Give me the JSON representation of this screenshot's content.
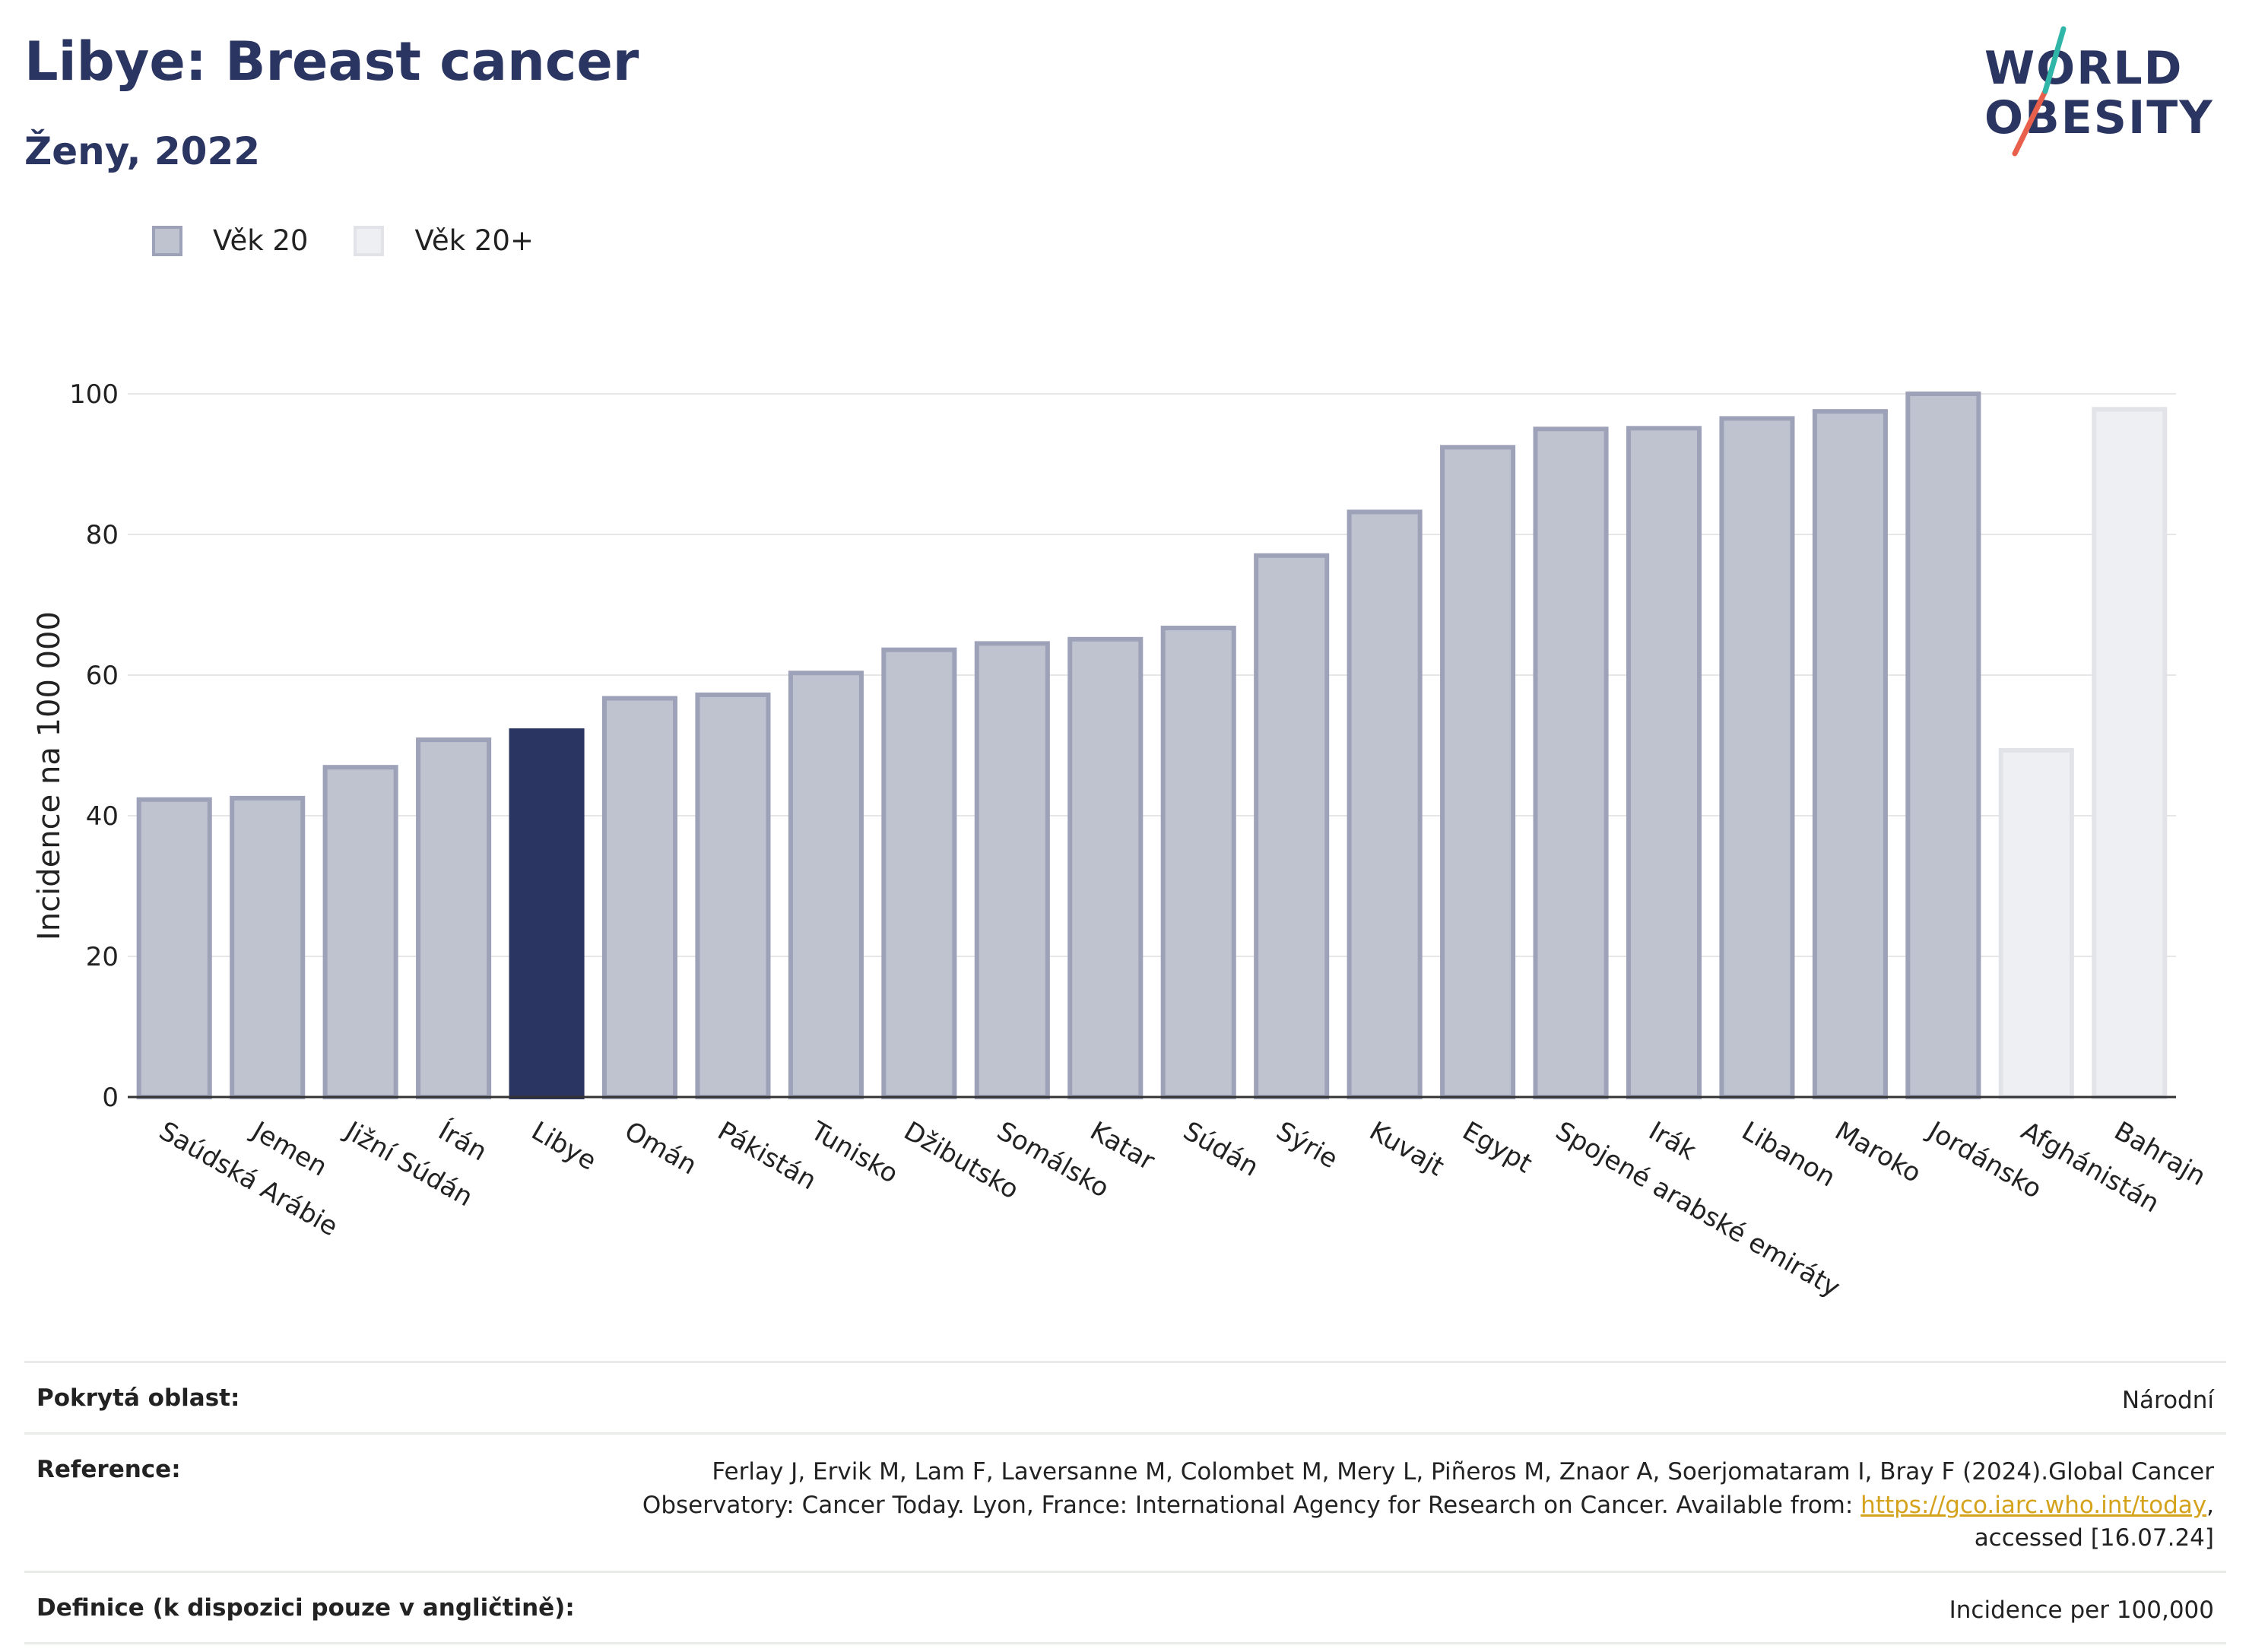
{
  "header": {
    "title": "Libye: Breast cancer",
    "subtitle": "Ženy, 2022"
  },
  "logo": {
    "line1": "WORLD",
    "line2": "OBESITY",
    "colors": {
      "text": "#2b3561",
      "slash_red": "#e8604c",
      "slash_teal": "#2fb6a8"
    }
  },
  "legend": [
    {
      "label": "Věk 20",
      "color": "#bfc2cf"
    },
    {
      "label": "Věk 20+",
      "color": "#eeeff3"
    }
  ],
  "chart_data": {
    "type": "bar",
    "ylabel": "Incidence na 100 000",
    "ylim": [
      0,
      100
    ],
    "yticks": [
      0,
      20,
      40,
      60,
      80,
      100
    ],
    "grid": true,
    "legend_position": "top-left",
    "categories": [
      "Saúdská Arábie",
      "Jemen",
      "Jižní Súdán",
      "Írán",
      "Libye",
      "Omán",
      "Pákistán",
      "Tunisko",
      "Džibutsko",
      "Somálsko",
      "Katar",
      "Súdán",
      "Sýrie",
      "Kuvajt",
      "Egypt",
      "Spojené arabské emiráty",
      "Irák",
      "Libanon",
      "Maroko",
      "Jordánsko",
      "Afghánistán",
      "Bahrajn"
    ],
    "values": [
      42.3,
      42.5,
      46.9,
      50.8,
      52.1,
      56.7,
      57.2,
      60.3,
      63.6,
      64.5,
      65.1,
      66.7,
      77.0,
      83.2,
      92.4,
      95.0,
      95.1,
      96.5,
      97.5,
      100.0,
      49.3,
      97.8
    ],
    "age_group": [
      "Věk 20",
      "Věk 20",
      "Věk 20",
      "Věk 20",
      "Věk 20",
      "Věk 20",
      "Věk 20",
      "Věk 20",
      "Věk 20",
      "Věk 20",
      "Věk 20",
      "Věk 20",
      "Věk 20",
      "Věk 20",
      "Věk 20",
      "Věk 20",
      "Věk 20",
      "Věk 20",
      "Věk 20",
      "Věk 20",
      "Věk 20+",
      "Věk 20+"
    ],
    "highlight": "Libye",
    "colors": {
      "age20_fill": "#bfc2cf",
      "age20_stroke": "#9ea2b8",
      "age20plus_fill": "#eeeff3",
      "age20plus_stroke": "#e2e3e9",
      "highlight_fill": "#2b3561"
    }
  },
  "info": {
    "rows": [
      {
        "label": "Pokrytá oblast:",
        "value": "Národní"
      },
      {
        "label": "Reference:",
        "value_line1": "Ferlay J, Ervik M, Lam F, Laversanne M, Colombet M, Mery L, Piñeros M, Znaor A, Soerjomataram I, Bray F (2024).Global Cancer",
        "value_line2_prefix": "Observatory: Cancer Today. Lyon, France: International Agency for Research on Cancer. Available from: ",
        "link": "https://gco.iarc.who.int/today",
        "value_line2_suffix": ",",
        "value_line3": "accessed [16.07.24]"
      },
      {
        "label": "Definice (k dispozici pouze v angličtině):",
        "value": "Incidence per 100,000"
      }
    ]
  }
}
